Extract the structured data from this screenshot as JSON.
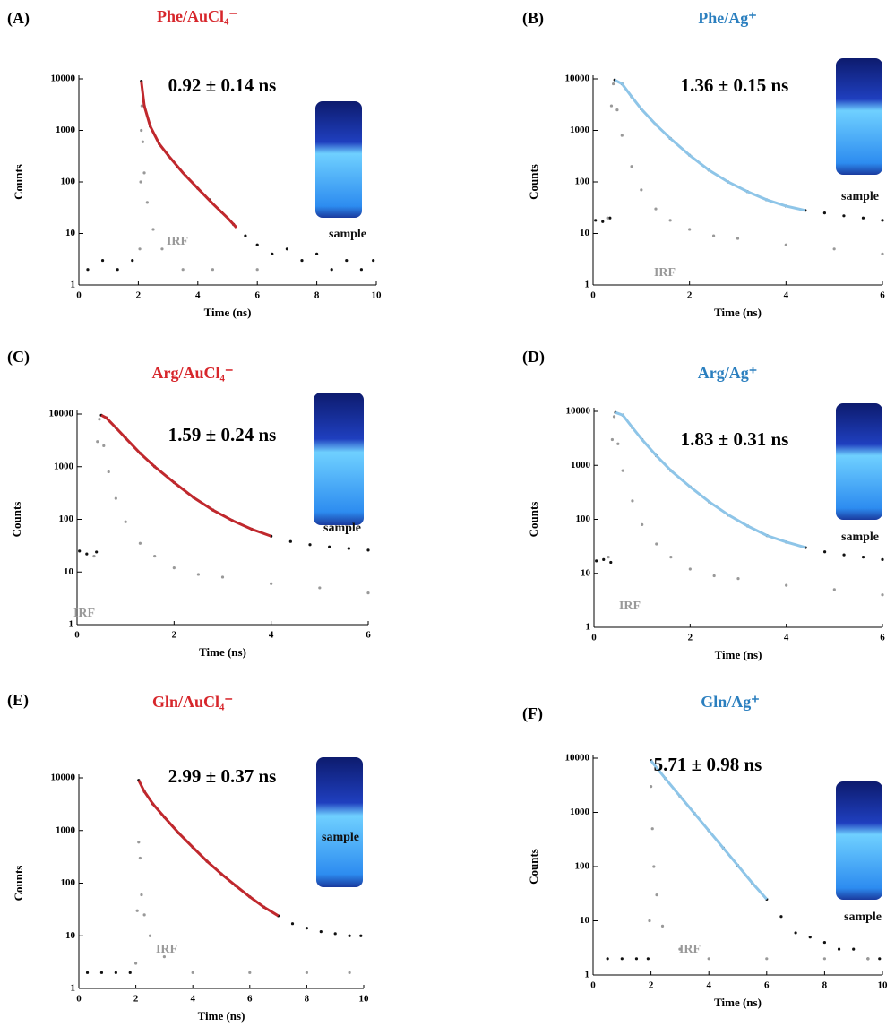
{
  "chart_data": [
    {
      "type": "scatter",
      "panel": "(A)",
      "title": "Phe/AuCl₄⁻",
      "title_color": "#d7262b",
      "annotation": "0.92 ± 0.14 ns",
      "xlabel": "Time (ns)",
      "ylabel": "Counts",
      "xlim": [
        0,
        10
      ],
      "ylim": [
        1,
        10000
      ],
      "log_y": true,
      "xticks": [
        0,
        2,
        4,
        6,
        8,
        10
      ],
      "yticks": [
        1,
        10,
        100,
        1000,
        10000
      ],
      "series": [
        {
          "name": "sample",
          "color": "#111111",
          "x": [
            0.3,
            0.8,
            1.3,
            1.8,
            2.1,
            2.2,
            2.4,
            2.7,
            3.0,
            3.3,
            3.6,
            4.0,
            4.4,
            4.8,
            5.2,
            5.6,
            6.0,
            6.5,
            7.0,
            7.5,
            8.0,
            8.5,
            9.0,
            9.5,
            9.9
          ],
          "values": [
            2,
            3,
            2,
            3,
            9000,
            3000,
            1200,
            550,
            330,
            200,
            130,
            75,
            45,
            26,
            15,
            9,
            6,
            4,
            5,
            3,
            4,
            2,
            3,
            2,
            3
          ]
        },
        {
          "name": "IRF",
          "color": "#999999",
          "x": [
            2.05,
            2.08,
            2.1,
            2.12,
            2.15,
            2.2,
            2.3,
            2.5,
            2.8,
            3.5,
            4.5,
            6.0
          ],
          "values": [
            5,
            100,
            1000,
            3000,
            600,
            150,
            40,
            12,
            5,
            2,
            2,
            2
          ]
        },
        {
          "color": "#c0282d",
          "x": [
            2.1,
            2.2,
            2.4,
            2.7,
            3.0,
            3.5,
            4.0,
            4.5,
            5.0,
            5.3
          ],
          "values": [
            9000,
            3000,
            1200,
            550,
            330,
            150,
            75,
            38,
            20,
            13
          ]
        }
      ]
    },
    {
      "type": "scatter",
      "panel": "(B)",
      "title": "Phe/Ag⁺",
      "title_color": "#2b7fbf",
      "annotation": "1.36 ± 0.15 ns",
      "xlabel": "Time (ns)",
      "ylabel": "Counts",
      "xlim": [
        0,
        6
      ],
      "ylim": [
        1,
        10000
      ],
      "log_y": true,
      "xticks": [
        0,
        2,
        4,
        6
      ],
      "yticks": [
        1,
        10,
        100,
        1000,
        10000
      ],
      "series": [
        {
          "name": "sample",
          "color": "#111111",
          "x": [
            0.05,
            0.2,
            0.35,
            0.45,
            0.6,
            0.8,
            1.0,
            1.3,
            1.6,
            2.0,
            2.4,
            2.8,
            3.2,
            3.6,
            4.0,
            4.4,
            4.8,
            5.2,
            5.6,
            6.0
          ],
          "values": [
            18,
            17,
            20,
            9500,
            8000,
            4500,
            2600,
            1300,
            700,
            330,
            170,
            100,
            65,
            45,
            34,
            28,
            25,
            22,
            20,
            18
          ]
        },
        {
          "name": "IRF",
          "color": "#999999",
          "x": [
            0.3,
            0.38,
            0.42,
            0.5,
            0.6,
            0.8,
            1.0,
            1.3,
            1.6,
            2.0,
            2.5,
            3.0,
            4.0,
            5.0,
            6.0
          ],
          "values": [
            20,
            3000,
            8000,
            2500,
            800,
            200,
            70,
            30,
            18,
            12,
            9,
            8,
            6,
            5,
            4
          ]
        },
        {
          "color": "#8ec5e8",
          "x": [
            0.45,
            0.6,
            0.8,
            1.0,
            1.3,
            1.6,
            2.0,
            2.4,
            2.8,
            3.2,
            3.6,
            4.0,
            4.4
          ],
          "values": [
            9500,
            8000,
            4500,
            2600,
            1300,
            700,
            330,
            170,
            100,
            65,
            45,
            34,
            28
          ]
        }
      ]
    },
    {
      "type": "scatter",
      "panel": "(C)",
      "title": "Arg/AuCl₄⁻",
      "title_color": "#d7262b",
      "annotation": "1.59 ± 0.24 ns",
      "xlabel": "Time (ns)",
      "ylabel": "Counts",
      "xlim": [
        0,
        6
      ],
      "ylim": [
        1,
        10000
      ],
      "log_y": true,
      "xticks": [
        0,
        2,
        4,
        6
      ],
      "yticks": [
        1,
        10,
        100,
        1000,
        10000
      ],
      "series": [
        {
          "name": "sample",
          "color": "#111111",
          "x": [
            0.05,
            0.2,
            0.4,
            0.5,
            0.6,
            0.8,
            1.0,
            1.3,
            1.6,
            2.0,
            2.4,
            2.8,
            3.2,
            3.6,
            4.0,
            4.4,
            4.8,
            5.2,
            5.6,
            6.0
          ],
          "values": [
            25,
            22,
            24,
            9500,
            8500,
            5500,
            3500,
            1800,
            1000,
            500,
            260,
            150,
            95,
            65,
            48,
            38,
            33,
            30,
            28,
            26
          ]
        },
        {
          "name": "IRF",
          "color": "#999999",
          "x": [
            0.35,
            0.42,
            0.46,
            0.55,
            0.65,
            0.8,
            1.0,
            1.3,
            1.6,
            2.0,
            2.5,
            3.0,
            4.0,
            5.0,
            6.0
          ],
          "values": [
            20,
            3000,
            8000,
            2500,
            800,
            250,
            90,
            35,
            20,
            12,
            9,
            8,
            6,
            5,
            4
          ]
        },
        {
          "color": "#c0282d",
          "x": [
            0.5,
            0.6,
            0.8,
            1.0,
            1.3,
            1.6,
            2.0,
            2.4,
            2.8,
            3.2,
            3.6,
            4.0
          ],
          "values": [
            9500,
            8500,
            5500,
            3500,
            1800,
            1000,
            500,
            260,
            150,
            95,
            65,
            48
          ]
        }
      ]
    },
    {
      "type": "scatter",
      "panel": "(D)",
      "title": "Arg/Ag⁺",
      "title_color": "#2b7fbf",
      "annotation": "1.83 ± 0.31 ns",
      "xlabel": "Time (ns)",
      "ylabel": "Counts",
      "xlim": [
        0,
        6
      ],
      "ylim": [
        1,
        10000
      ],
      "log_y": true,
      "xticks": [
        0,
        2,
        4,
        6
      ],
      "yticks": [
        1,
        10,
        100,
        1000,
        10000
      ],
      "series": [
        {
          "name": "sample",
          "color": "#111111",
          "x": [
            0.05,
            0.2,
            0.35,
            0.45,
            0.6,
            0.8,
            1.0,
            1.3,
            1.6,
            2.0,
            2.4,
            2.8,
            3.2,
            3.6,
            4.0,
            4.4,
            4.8,
            5.2,
            5.6,
            6.0
          ],
          "values": [
            17,
            18,
            16,
            9500,
            8500,
            5000,
            3000,
            1500,
            800,
            400,
            210,
            120,
            75,
            50,
            38,
            30,
            25,
            22,
            20,
            18
          ]
        },
        {
          "name": "IRF",
          "color": "#999999",
          "x": [
            0.3,
            0.38,
            0.42,
            0.5,
            0.6,
            0.8,
            1.0,
            1.3,
            1.6,
            2.0,
            2.5,
            3.0,
            4.0,
            5.0,
            6.0
          ],
          "values": [
            20,
            3000,
            8000,
            2500,
            800,
            220,
            80,
            35,
            20,
            12,
            9,
            8,
            6,
            5,
            4
          ]
        },
        {
          "color": "#8ec5e8",
          "x": [
            0.45,
            0.6,
            0.8,
            1.0,
            1.3,
            1.6,
            2.0,
            2.4,
            2.8,
            3.2,
            3.6,
            4.0,
            4.4
          ],
          "values": [
            9500,
            8500,
            5000,
            3000,
            1500,
            800,
            400,
            210,
            120,
            75,
            50,
            38,
            30
          ]
        }
      ]
    },
    {
      "type": "scatter",
      "panel": "(E)",
      "title": "Gln/AuCl₄⁻",
      "title_color": "#d7262b",
      "annotation": "2.99 ± 0.37 ns",
      "xlabel": "Time (ns)",
      "ylabel": "Counts",
      "xlim": [
        0,
        10
      ],
      "ylim": [
        1,
        10000
      ],
      "log_y": true,
      "xticks": [
        0,
        2,
        4,
        6,
        8,
        10
      ],
      "yticks": [
        1,
        10,
        100,
        1000,
        10000
      ],
      "series": [
        {
          "name": "sample",
          "color": "#111111",
          "x": [
            0.3,
            0.8,
            1.3,
            1.8,
            2.1,
            2.3,
            2.6,
            3.0,
            3.5,
            4.0,
            4.5,
            5.0,
            5.5,
            6.0,
            6.5,
            7.0,
            7.5,
            8.0,
            8.5,
            9.0,
            9.5,
            9.9
          ],
          "values": [
            2,
            2,
            2,
            2,
            9000,
            5500,
            3200,
            1800,
            900,
            480,
            260,
            150,
            90,
            55,
            35,
            24,
            17,
            14,
            12,
            11,
            10,
            10
          ]
        },
        {
          "name": "IRF",
          "color": "#999999",
          "x": [
            2.0,
            2.05,
            2.1,
            2.15,
            2.2,
            2.3,
            2.5,
            3.0,
            4.0,
            6.0,
            8.0,
            9.5
          ],
          "values": [
            3,
            30,
            600,
            300,
            60,
            25,
            10,
            4,
            2,
            2,
            2,
            2
          ]
        },
        {
          "color": "#c0282d",
          "x": [
            2.1,
            2.3,
            2.6,
            3.0,
            3.5,
            4.0,
            4.5,
            5.0,
            5.5,
            6.0,
            6.5,
            7.0
          ],
          "values": [
            9000,
            5500,
            3200,
            1800,
            900,
            480,
            260,
            150,
            90,
            55,
            35,
            24
          ]
        }
      ]
    },
    {
      "type": "scatter",
      "panel": "(F)",
      "title": "Gln/Ag⁺",
      "title_color": "#2b7fbf",
      "annotation": "5.71 ± 0.98 ns",
      "xlabel": "Time (ns)",
      "ylabel": "Counts",
      "xlim": [
        0,
        10
      ],
      "ylim": [
        1,
        10000
      ],
      "log_y": true,
      "xticks": [
        0,
        2,
        4,
        6,
        8,
        10
      ],
      "yticks": [
        1,
        10,
        100,
        1000,
        10000
      ],
      "series": [
        {
          "name": "sample",
          "color": "#111111",
          "x": [
            0.5,
            1.0,
            1.5,
            1.9,
            2.0,
            2.5,
            3.0,
            3.5,
            4.0,
            4.5,
            5.0,
            5.5,
            6.0,
            6.5,
            7.0,
            7.5,
            8.0,
            8.5,
            9.0,
            9.5,
            9.9
          ],
          "values": [
            2,
            2,
            2,
            2,
            9000,
            4200,
            2000,
            960,
            460,
            220,
            105,
            50,
            25,
            12,
            6,
            5,
            4,
            3,
            3,
            2,
            2
          ]
        },
        {
          "name": "IRF",
          "color": "#999999",
          "x": [
            1.95,
            2.0,
            2.05,
            2.1,
            2.2,
            2.4,
            3.0,
            4.0,
            6.0,
            8.0,
            9.5
          ],
          "values": [
            10,
            3000,
            500,
            100,
            30,
            8,
            3,
            2,
            2,
            2,
            2
          ]
        },
        {
          "color": "#8ec5e8",
          "x": [
            2.0,
            2.5,
            3.0,
            3.5,
            4.0,
            4.5,
            5.0,
            5.5,
            6.0
          ],
          "values": [
            9000,
            4200,
            2000,
            960,
            460,
            220,
            105,
            50,
            25
          ]
        }
      ]
    }
  ]
}
